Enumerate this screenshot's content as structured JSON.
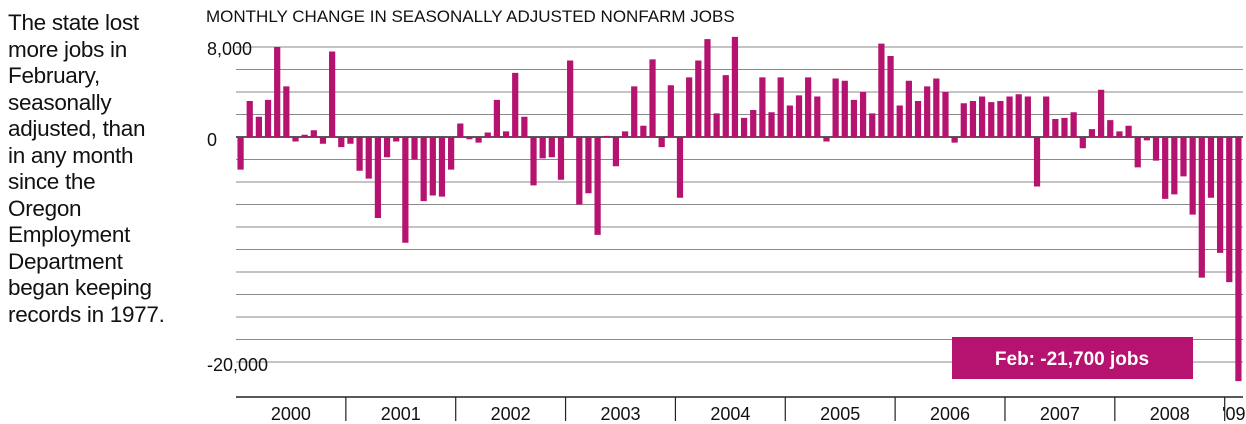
{
  "side_note": {
    "lines": [
      "The state lost",
      "more jobs in",
      "February,",
      "seasonally",
      "adjusted, than",
      "in any month",
      "since the",
      "Oregon",
      "Employment",
      "Department",
      "began keeping",
      "records in 1977."
    ]
  },
  "chart_data": {
    "type": "bar",
    "title": "MONTHLY CHANGE IN SEASONALLY ADJUSTED NONFARM JOBS",
    "xlabel": "",
    "ylabel": "",
    "y_tick_labels": [
      {
        "value": 8000,
        "label": "8,000"
      },
      {
        "value": 0,
        "label": "0"
      },
      {
        "value": -20000,
        "label": "-20,000"
      }
    ],
    "ylim": [
      -21700,
      8000
    ],
    "gridlines": true,
    "gridline_step": 2000,
    "color": "#b5136f",
    "years": [
      "2000",
      "2001",
      "2002",
      "2003",
      "2004",
      "2005",
      "2006",
      "2007",
      "2008",
      "'09"
    ],
    "series": [
      {
        "values": [
          -2900,
          3200,
          1800,
          3300,
          8000,
          4500,
          -400,
          200,
          600,
          -600,
          7600,
          -900,
          -600,
          -3000,
          -3700,
          -7200,
          -1800,
          -400,
          -9400,
          -2000,
          -5700,
          -5200,
          -5300,
          -2900,
          1200,
          -200,
          -500,
          400,
          3300,
          500,
          5700,
          1800,
          -4300,
          -1900,
          -1800,
          -3800,
          6800,
          -6000,
          -5000,
          -8700,
          100,
          -2600,
          500,
          4500,
          1000,
          6900,
          -900,
          4600,
          -5400,
          5300,
          6800,
          8700,
          2100,
          5500,
          8900,
          1700,
          2400,
          5300,
          2200,
          5300,
          2800,
          3700,
          5300,
          3600,
          -400,
          5200,
          5000,
          3300,
          4000,
          2100,
          8300,
          7200,
          2800,
          5000,
          3200,
          4500,
          5200,
          4000,
          -500,
          3000,
          3200,
          3600,
          3100,
          3200,
          3600,
          3800,
          3600,
          -4400,
          3600,
          1600,
          1700,
          2200,
          -1000,
          700,
          4200,
          1500,
          500,
          1000,
          -2700,
          -300,
          -2100,
          -5500,
          -5100,
          -3500,
          -6900,
          -12500,
          -5400,
          -10300,
          -12900,
          -21700
        ]
      }
    ],
    "annotation": "Feb: -21,700 jobs"
  }
}
